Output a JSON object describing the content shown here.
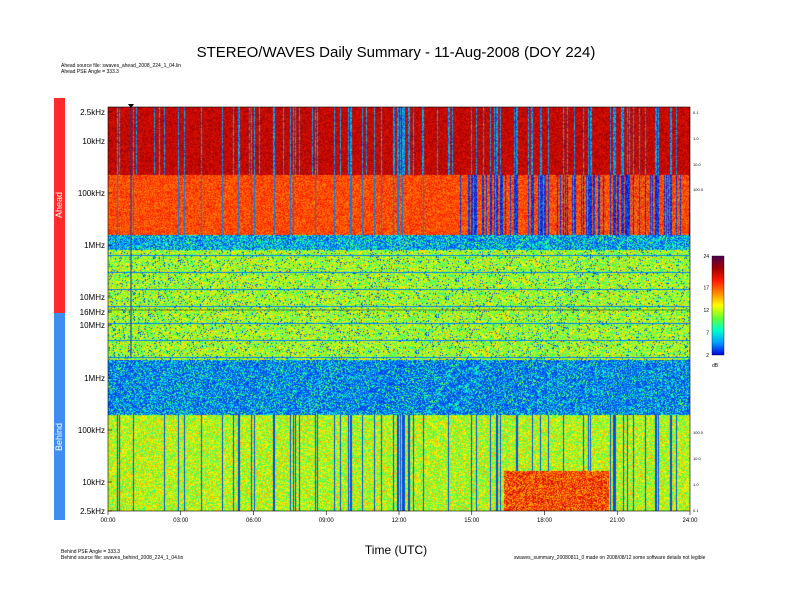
{
  "page": {
    "title": "STEREO/WAVES Daily Summary - 11-Aug-2008 (DOY 224)",
    "ahead_file": "Ahead source file: swaves_ahead_2008_224_1_04.lin",
    "ahead_angle": "Ahead PSE Angle = 333.3",
    "behind_angle": "Behind PSE Angle = 333.3",
    "behind_file": "Behind source file: swaves_behind_2008_224_1_04.lin",
    "footer_right": "swaves_summary_20080811_0 made on 2008/08/12 some software details not legible"
  },
  "colors": {
    "ahead_band": "#ff2a2a",
    "behind_band": "#3d8ef0",
    "spectrogram_cmap": [
      "#0000dd",
      "#00a0ff",
      "#00ffcc",
      "#66ff33",
      "#ffff00",
      "#ff8800",
      "#ff1a00",
      "#a00000",
      "#4a0050"
    ]
  },
  "chart_data": {
    "type": "heatmap",
    "title": "STEREO/WAVES Daily Summary - 11-Aug-2008 (DOY 224)",
    "xlabel": "Time (UTC)",
    "xticks": [
      "00:00",
      "03:00",
      "06:00",
      "09:00",
      "12:00",
      "15:00",
      "18:00",
      "21:00",
      "24:00"
    ],
    "xlim_hours": [
      0,
      24
    ],
    "panels": [
      {
        "label": "Ahead",
        "y_ticks": [
          "2.5kHz",
          "10kHz",
          "100kHz",
          "1MHz",
          "10MHz",
          "16MHz"
        ],
        "right_ticks": [
          "0.1",
          "1.0",
          "10.0",
          "100.0"
        ]
      },
      {
        "label": "Behind",
        "y_ticks": [
          "10MHz",
          "1MHz",
          "100kHz",
          "10kHz",
          "2.5kHz"
        ],
        "right_ticks": [
          "100.0",
          "10.0",
          "1.0",
          "0.1"
        ]
      }
    ],
    "colorbar": {
      "ticks": [
        "24",
        "17",
        "12",
        "7",
        "2"
      ],
      "unit": "dB",
      "range_db": [
        2,
        24
      ]
    },
    "grid": false
  }
}
